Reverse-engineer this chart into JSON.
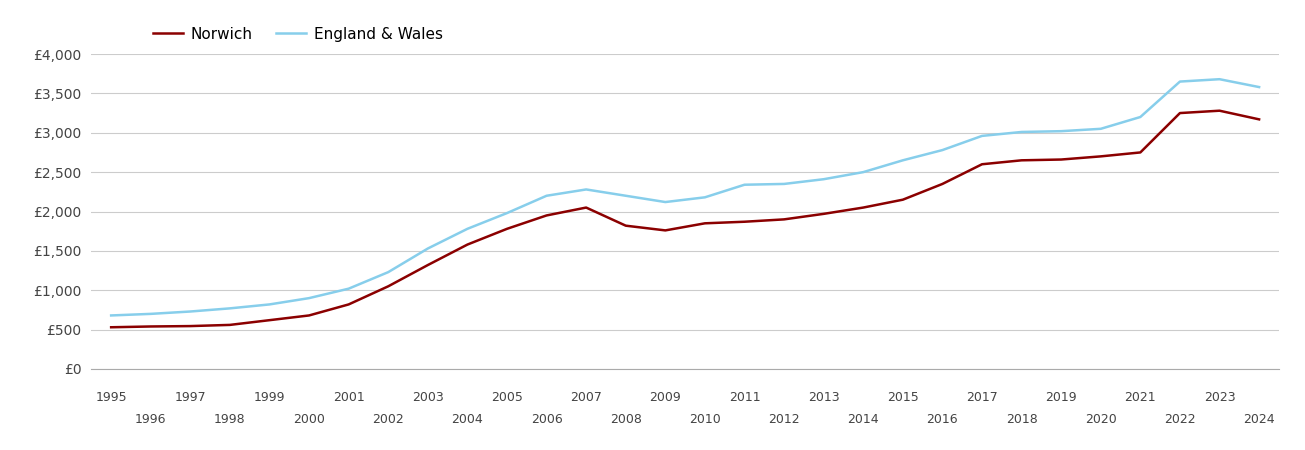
{
  "norwich_color": "#8B0000",
  "england_wales_color": "#87CEEB",
  "legend_labels": [
    "Norwich",
    "England & Wales"
  ],
  "years": [
    1995,
    1996,
    1997,
    1998,
    1999,
    2000,
    2001,
    2002,
    2003,
    2004,
    2005,
    2006,
    2007,
    2008,
    2009,
    2010,
    2011,
    2012,
    2013,
    2014,
    2015,
    2016,
    2017,
    2018,
    2019,
    2020,
    2021,
    2022,
    2023,
    2024
  ],
  "norwich": [
    530,
    540,
    545,
    560,
    620,
    680,
    820,
    1050,
    1320,
    1580,
    1780,
    1950,
    2050,
    1820,
    1760,
    1850,
    1870,
    1900,
    1970,
    2050,
    2150,
    2350,
    2600,
    2650,
    2660,
    2700,
    2750,
    3250,
    3280,
    3170
  ],
  "england_wales": [
    680,
    700,
    730,
    770,
    820,
    900,
    1020,
    1230,
    1530,
    1780,
    1980,
    2200,
    2280,
    2200,
    2120,
    2180,
    2340,
    2350,
    2410,
    2500,
    2650,
    2780,
    2960,
    3010,
    3020,
    3050,
    3200,
    3650,
    3680,
    3580
  ],
  "ylim": [
    0,
    4000
  ],
  "yticks": [
    0,
    500,
    1000,
    1500,
    2000,
    2500,
    3000,
    3500,
    4000
  ],
  "ytick_labels": [
    "£0",
    "£500",
    "£1,000",
    "£1,500",
    "£2,000",
    "£2,500",
    "£3,000",
    "£3,500",
    "£4,000"
  ],
  "line_width": 1.8,
  "background_color": "#ffffff",
  "grid_color": "#cccccc",
  "odd_years": [
    1995,
    1997,
    1999,
    2001,
    2003,
    2005,
    2007,
    2009,
    2011,
    2013,
    2015,
    2017,
    2019,
    2021,
    2023
  ],
  "even_years": [
    1996,
    1998,
    2000,
    2002,
    2004,
    2006,
    2008,
    2010,
    2012,
    2014,
    2016,
    2018,
    2020,
    2022,
    2024
  ]
}
